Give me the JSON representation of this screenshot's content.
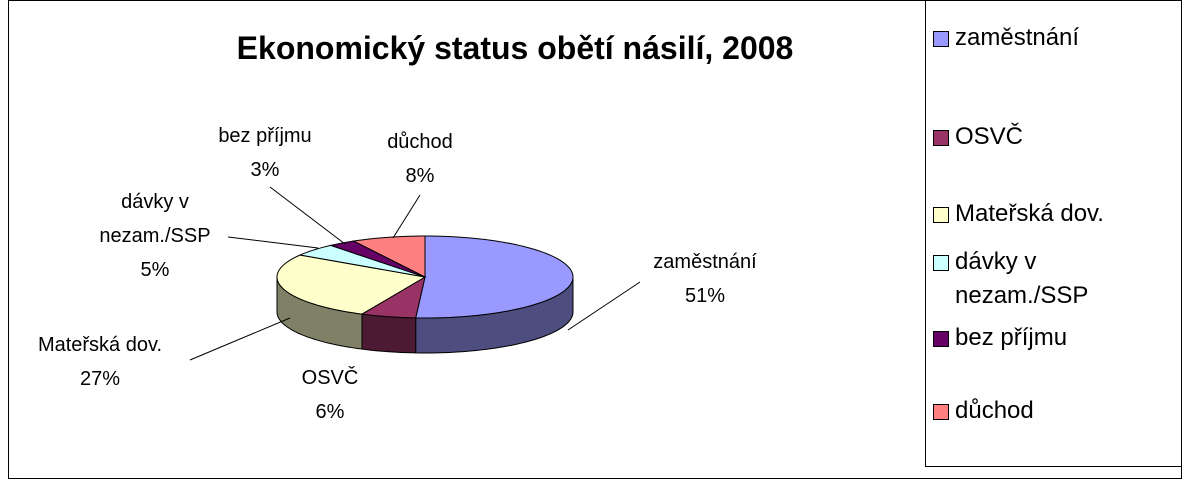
{
  "chart_data": {
    "type": "pie3d",
    "title": "Ekonomický status obětí násilí, 2008",
    "categories": [
      "zaměstnání",
      "OSVČ",
      "Mateřská dov.",
      "dávky v nezam./SSP",
      "bez příjmu",
      "důchod"
    ],
    "values": [
      51,
      6,
      27,
      5,
      3,
      8
    ],
    "value_labels": [
      "51%",
      "6%",
      "27%",
      "5%",
      "3%",
      "8%"
    ],
    "colors": [
      "#9999ff",
      "#993366",
      "#ffffcc",
      "#ccffff",
      "#660066",
      "#ff8080"
    ],
    "legend": "right"
  }
}
